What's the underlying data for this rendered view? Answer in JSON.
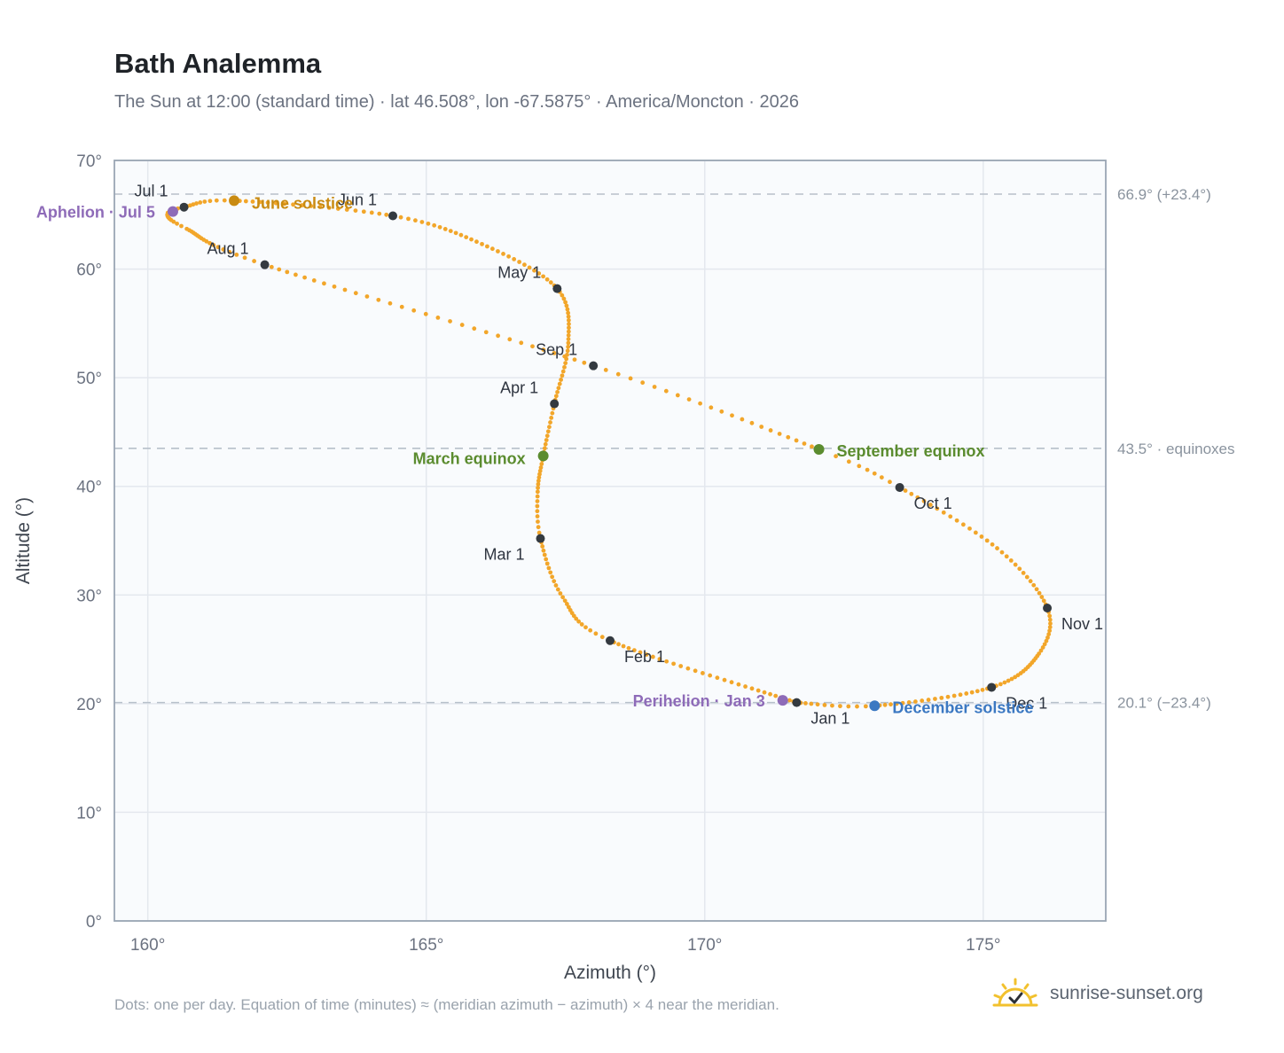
{
  "header": {
    "title": "Bath Analemma",
    "subtitle": "The Sun at 12:00 (standard time) · lat 46.508°, lon -67.5875° · America/Moncton · 2026"
  },
  "footer": {
    "note": "Dots: one per day. Equation of time (minutes) ≈ (meridian azimuth − azimuth) × 4 near the meridian.",
    "brand": "sunrise-sunset.org"
  },
  "colors": {
    "path": "#f2a62a",
    "month_dot": "#343a40",
    "aphelion": "#8e6bb8",
    "perihelion": "#8e6bb8",
    "june_solstice": "#c98b12",
    "december_solstice": "#3b78c2",
    "equinox": "#5b8c2f",
    "plot_bg": "#f9fbfd",
    "grid": "#e4e8ee",
    "frame": "#9aa6b4",
    "ref_line": "#b7c0ca"
  },
  "chart_data": {
    "type": "scatter",
    "xlabel": "Azimuth (°)",
    "ylabel": "Altitude (°)",
    "xlim": [
      159.4,
      177.2
    ],
    "ylim": [
      0,
      70
    ],
    "x_ticks": [
      {
        "value": 160,
        "label": "160°"
      },
      {
        "value": 165,
        "label": "165°"
      },
      {
        "value": 170,
        "label": "170°"
      },
      {
        "value": 175,
        "label": "175°"
      }
    ],
    "y_ticks": [
      {
        "value": 0,
        "label": "0°"
      },
      {
        "value": 10,
        "label": "10°"
      },
      {
        "value": 20,
        "label": "20°"
      },
      {
        "value": 30,
        "label": "30°"
      },
      {
        "value": 40,
        "label": "40°"
      },
      {
        "value": 50,
        "label": "50°"
      },
      {
        "value": 60,
        "label": "60°"
      },
      {
        "value": 70,
        "label": "70°"
      }
    ],
    "reference_lines": [
      {
        "y": 66.9,
        "label": "66.9° (+23.4°)"
      },
      {
        "y": 43.5,
        "label": "43.5° · equinoxes"
      },
      {
        "y": 20.1,
        "label": "20.1° (−23.4°)"
      }
    ],
    "month_points": [
      {
        "label": "Jan 1",
        "az": 171.65,
        "alt": 20.1
      },
      {
        "label": "Feb 1",
        "az": 168.3,
        "alt": 25.8
      },
      {
        "label": "Mar 1",
        "az": 167.05,
        "alt": 35.2
      },
      {
        "label": "Apr 1",
        "az": 167.3,
        "alt": 47.6
      },
      {
        "label": "May 1",
        "az": 167.35,
        "alt": 58.2
      },
      {
        "label": "Jun 1",
        "az": 164.4,
        "alt": 64.9
      },
      {
        "label": "Jul 1",
        "az": 160.65,
        "alt": 65.7
      },
      {
        "label": "Aug 1",
        "az": 162.1,
        "alt": 60.4
      },
      {
        "label": "Sep 1",
        "az": 168.0,
        "alt": 51.1
      },
      {
        "label": "Oct 1",
        "az": 173.5,
        "alt": 39.9
      },
      {
        "label": "Nov 1",
        "az": 176.15,
        "alt": 28.8
      },
      {
        "label": "Dec 1",
        "az": 175.15,
        "alt": 21.5
      }
    ],
    "events": [
      {
        "label": "Aphelion · Jul 5",
        "az": 160.45,
        "alt": 65.3,
        "kind": "aphelion"
      },
      {
        "label": "June solstice",
        "az": 161.55,
        "alt": 66.3,
        "kind": "june_solstice"
      },
      {
        "label": "March equinox",
        "az": 167.1,
        "alt": 42.8,
        "kind": "equinox"
      },
      {
        "label": "September equinox",
        "az": 172.05,
        "alt": 43.4,
        "kind": "equinox"
      },
      {
        "label": "Perihelion · Jan 3",
        "az": 171.4,
        "alt": 20.3,
        "kind": "perihelion"
      },
      {
        "label": "December solstice",
        "az": 173.05,
        "alt": 19.8,
        "kind": "december_solstice"
      }
    ],
    "path_anchors": [
      {
        "day": 0,
        "az": 171.65,
        "alt": 20.1
      },
      {
        "day": 31,
        "az": 168.3,
        "alt": 25.8
      },
      {
        "day": 45,
        "az": 167.45,
        "alt": 29.8
      },
      {
        "day": 59,
        "az": 167.05,
        "alt": 35.2
      },
      {
        "day": 68,
        "az": 167.0,
        "alt": 39.5
      },
      {
        "day": 78,
        "az": 167.1,
        "alt": 42.8
      },
      {
        "day": 90,
        "az": 167.3,
        "alt": 47.6
      },
      {
        "day": 105,
        "az": 167.55,
        "alt": 53.2
      },
      {
        "day": 120,
        "az": 167.35,
        "alt": 58.2
      },
      {
        "day": 136,
        "az": 166.0,
        "alt": 62.3
      },
      {
        "day": 151,
        "az": 164.4,
        "alt": 64.9
      },
      {
        "day": 171,
        "az": 161.55,
        "alt": 66.3
      },
      {
        "day": 181,
        "az": 160.65,
        "alt": 65.7
      },
      {
        "day": 186,
        "az": 160.35,
        "alt": 65.0
      },
      {
        "day": 194,
        "az": 160.7,
        "alt": 63.7
      },
      {
        "day": 212,
        "az": 162.1,
        "alt": 60.4
      },
      {
        "day": 243,
        "az": 168.0,
        "alt": 51.1
      },
      {
        "day": 265,
        "az": 172.05,
        "alt": 43.4
      },
      {
        "day": 273,
        "az": 173.5,
        "alt": 39.9
      },
      {
        "day": 289,
        "az": 175.25,
        "alt": 34.3
      },
      {
        "day": 304,
        "az": 176.15,
        "alt": 28.8
      },
      {
        "day": 317,
        "az": 176.0,
        "alt": 24.6
      },
      {
        "day": 334,
        "az": 175.15,
        "alt": 21.5
      },
      {
        "day": 354,
        "az": 173.05,
        "alt": 19.8
      },
      {
        "day": 365,
        "az": 171.65,
        "alt": 20.1
      }
    ]
  }
}
